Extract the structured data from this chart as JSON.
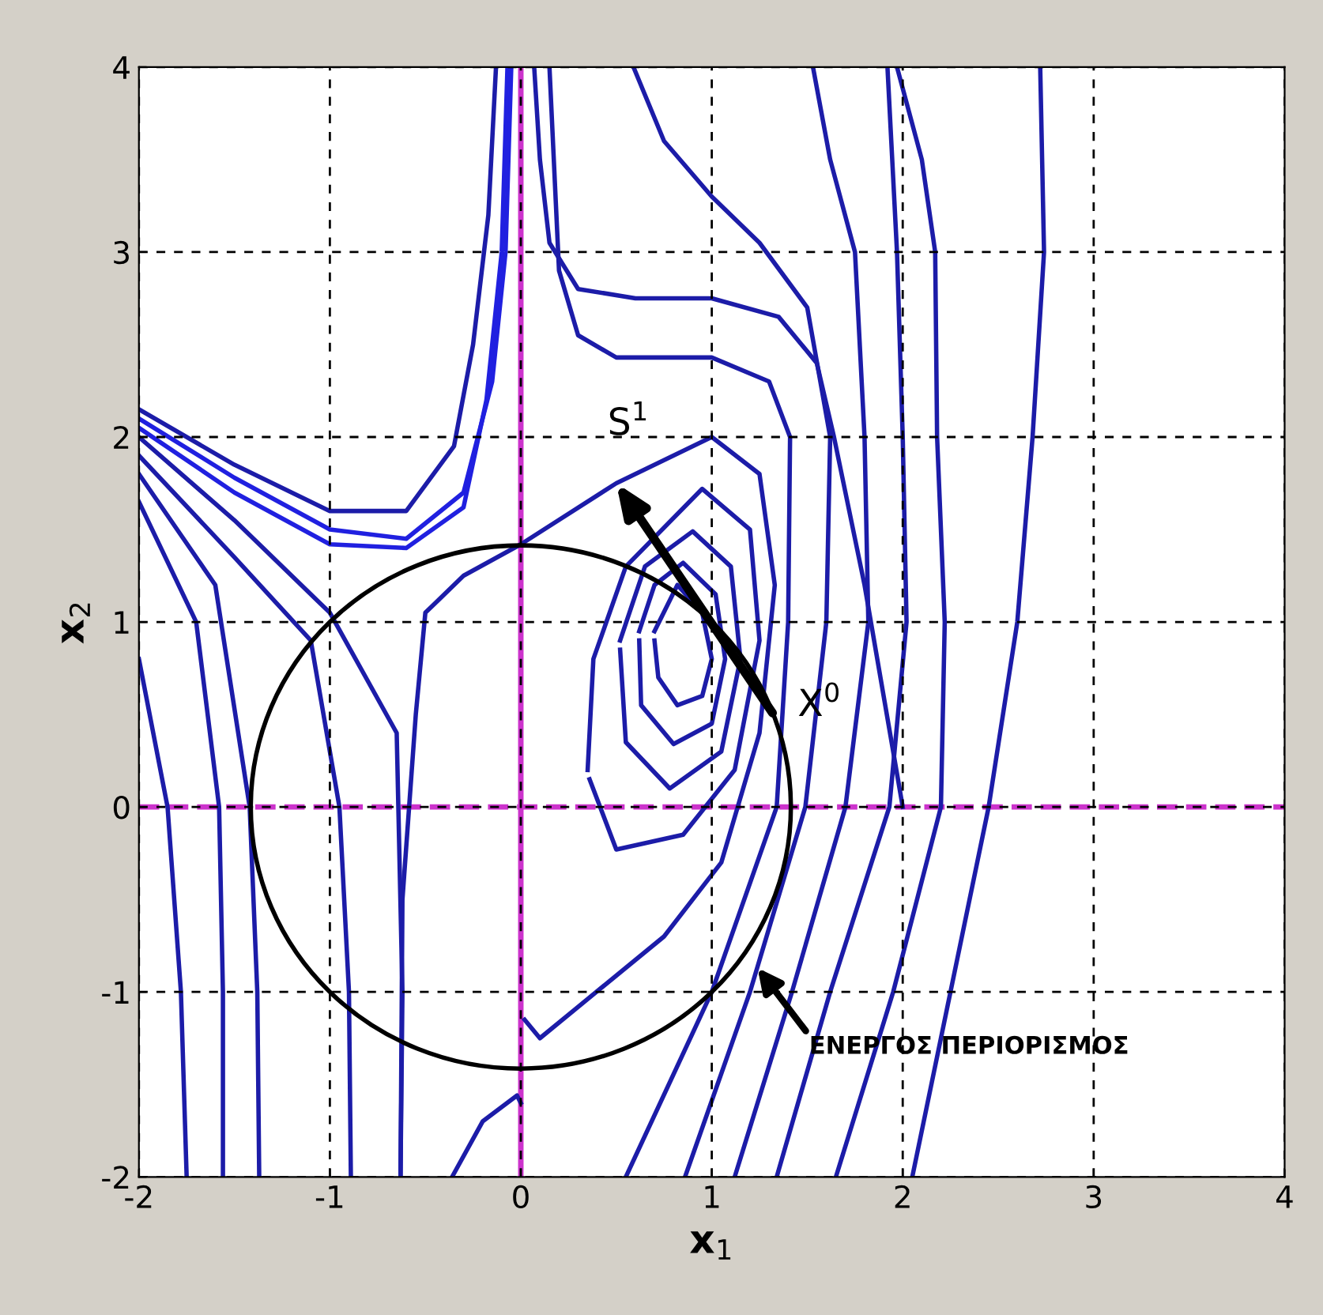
{
  "chart_data": {
    "type": "line",
    "xlabel": "x$_{1}$",
    "ylabel": "x$_{2}$",
    "xlim": [
      -2,
      4
    ],
    "ylim": [
      -2,
      4
    ],
    "xticks": [
      -2,
      -1,
      0,
      1,
      2,
      3,
      4
    ],
    "yticks": [
      -2,
      -1,
      0,
      1,
      2,
      3,
      4
    ],
    "grid": true,
    "line_style": "solid",
    "marker": "none",
    "series": [
      {
        "color": "#1c1ca8",
        "x": [
          2.05,
          2.25,
          2.45,
          2.6,
          2.68,
          2.74,
          2.72
        ],
        "values": [
          -2,
          -1,
          0,
          1,
          2,
          3,
          4
        ]
      },
      {
        "color": "#1c1ca8",
        "x": [
          1.65,
          1.95,
          2.2,
          2.22,
          2.18,
          2.17,
          2.1,
          1.97
        ],
        "values": [
          -2,
          -1,
          0,
          1,
          2,
          3,
          3.5,
          4
        ]
      },
      {
        "color": "#1c1ca8",
        "x": [
          1.34,
          1.62,
          1.93,
          2.02,
          2.0,
          1.97,
          1.92
        ],
        "values": [
          -2,
          -1,
          0,
          1,
          2,
          3,
          4
        ]
      },
      {
        "color": "#1c1ca8",
        "x": [
          1.12,
          1.42,
          1.7,
          1.82,
          1.8,
          1.75,
          1.62,
          1.53
        ],
        "values": [
          -2,
          -1,
          0,
          1,
          2,
          3,
          3.5,
          4
        ]
      },
      {
        "color": "#1c1ca8",
        "x": [
          0.86,
          1.2,
          1.49,
          1.6,
          1.62,
          1.5,
          1.25,
          1.0,
          0.75,
          0.59
        ],
        "values": [
          -2,
          -1,
          0,
          1,
          2,
          2.7,
          3.05,
          3.3,
          3.6,
          4
        ]
      },
      {
        "color": "#1c1ca8",
        "x": [
          0.55,
          1.0,
          1.34,
          1.4,
          1.41,
          1.3,
          1.0,
          0.5,
          0.3,
          0.2,
          0.15
        ],
        "values": [
          -2,
          -1,
          0,
          1,
          2,
          2.3,
          2.43,
          2.43,
          2.55,
          2.9,
          4
        ]
      },
      {
        "color": "#1c1ca8",
        "x": [
          -0.63,
          -0.62,
          -0.55,
          -0.5,
          -0.3,
          0,
          0.5,
          1.0,
          1.25,
          1.33,
          1.25,
          1.05,
          0.75,
          0.1,
          0.02
        ],
        "values": [
          -2,
          -0.5,
          0.5,
          1.05,
          1.25,
          1.42,
          1.75,
          2.0,
          1.8,
          1.2,
          0.4,
          -0.3,
          -0.7,
          -1.25,
          -1.15
        ]
      },
      {
        "color": "#1c1ca8",
        "x": [
          0.7,
          0.82,
          0.95,
          1.0,
          0.95,
          0.82,
          0.72,
          0.7
        ],
        "values": [
          0.95,
          1.2,
          1.05,
          0.8,
          0.6,
          0.55,
          0.7,
          0.9
        ]
      },
      {
        "color": "#1c1ca8",
        "x": [
          0.62,
          0.7,
          0.85,
          1.02,
          1.07,
          1.0,
          0.8,
          0.63,
          0.62
        ],
        "values": [
          0.95,
          1.2,
          1.32,
          1.15,
          0.8,
          0.45,
          0.34,
          0.55,
          0.9
        ]
      },
      {
        "color": "#1c1ca8",
        "x": [
          0.52,
          0.65,
          0.9,
          1.1,
          1.15,
          1.05,
          0.78,
          0.55,
          0.52
        ],
        "values": [
          0.9,
          1.3,
          1.49,
          1.3,
          0.8,
          0.3,
          0.1,
          0.35,
          0.85
        ]
      },
      {
        "color": "#1c1ca8",
        "x": [
          0.35,
          0.38,
          0.55,
          0.95,
          1.2,
          1.25,
          1.12,
          0.85,
          0.5,
          0.36
        ],
        "values": [
          0.2,
          0.8,
          1.3,
          1.72,
          1.5,
          0.9,
          0.2,
          -0.15,
          -0.23,
          0.15
        ]
      },
      {
        "color": "#1c1ca8",
        "x": [
          -0.36,
          -0.2,
          -0.02,
          0.0
        ],
        "values": [
          -2,
          -1.7,
          -1.56,
          -1.6
        ]
      },
      {
        "color": "#1c1ca8",
        "x": [
          -2,
          -1.85,
          -1.78,
          -1.75
        ],
        "values": [
          0.8,
          0,
          -1,
          -2
        ]
      },
      {
        "color": "#1c1ca8",
        "x": [
          -2,
          -1.7,
          -1.58,
          -1.56,
          -1.56
        ],
        "values": [
          1.65,
          1.0,
          0,
          -1,
          -2
        ]
      },
      {
        "color": "#1c1ca8",
        "x": [
          -2,
          -1.6,
          -1.42,
          -1.38,
          -1.37
        ],
        "values": [
          1.8,
          1.2,
          0,
          -1,
          -2
        ]
      },
      {
        "color": "#1c1ca8",
        "x": [
          -2,
          -1.5,
          -1.1,
          -0.95,
          -0.9,
          -0.89
        ],
        "values": [
          1.9,
          1.35,
          0.9,
          0,
          -1,
          -2
        ]
      },
      {
        "color": "#1c1ca8",
        "x": [
          -2,
          -1.5,
          -1.0,
          -0.65,
          -0.62,
          -0.63
        ],
        "values": [
          2.0,
          1.55,
          1.05,
          0.4,
          -1,
          -2
        ]
      },
      {
        "color": "#2020e0",
        "x": [
          -2,
          -1.5,
          -1.0,
          -0.6,
          -0.3,
          -0.15,
          -0.08,
          -0.05
        ],
        "values": [
          2.1,
          1.78,
          1.5,
          1.45,
          1.7,
          2.3,
          3.0,
          4
        ]
      },
      {
        "color": "#2020e0",
        "x": [
          -2,
          -1.5,
          -1.0,
          -0.6,
          -0.3,
          -0.18,
          -0.1,
          -0.07
        ],
        "values": [
          2.05,
          1.7,
          1.42,
          1.4,
          1.62,
          2.2,
          3.0,
          4
        ]
      },
      {
        "color": "#1c1ca8",
        "x": [
          -2,
          -1.5,
          -1.0,
          -0.6,
          -0.35,
          -0.25,
          -0.17,
          -0.13
        ],
        "values": [
          2.15,
          1.85,
          1.6,
          1.6,
          1.95,
          2.5,
          3.2,
          4
        ]
      },
      {
        "color": "#1c1ca8",
        "x": [
          0.07,
          0.1,
          0.15,
          0.3,
          0.6,
          1.0,
          1.35,
          1.55,
          1.64,
          1.8,
          2.0
        ],
        "values": [
          4,
          3.5,
          3.05,
          2.8,
          2.75,
          2.75,
          2.65,
          2.4,
          2.0,
          1.2,
          0
        ]
      }
    ],
    "ref_lines": [
      {
        "axis": "x",
        "value": 0,
        "color": "#cc33cc",
        "line_style": "solid"
      },
      {
        "axis": "y",
        "value": 0,
        "color": "#cc33cc",
        "line_style": "dashed"
      }
    ],
    "annotations": [
      "X$^{0}$",
      {
        "text": "S$^{1}$",
        "x": 0.5,
        "y": 1.75
      },
      {
        "text": "ΕΝΕΡΓΟΣ ΠΕΡΙΟΡΙΣΜΟΣ",
        "x": 1.24,
        "y": -0.87
      }
    ]
  }
}
